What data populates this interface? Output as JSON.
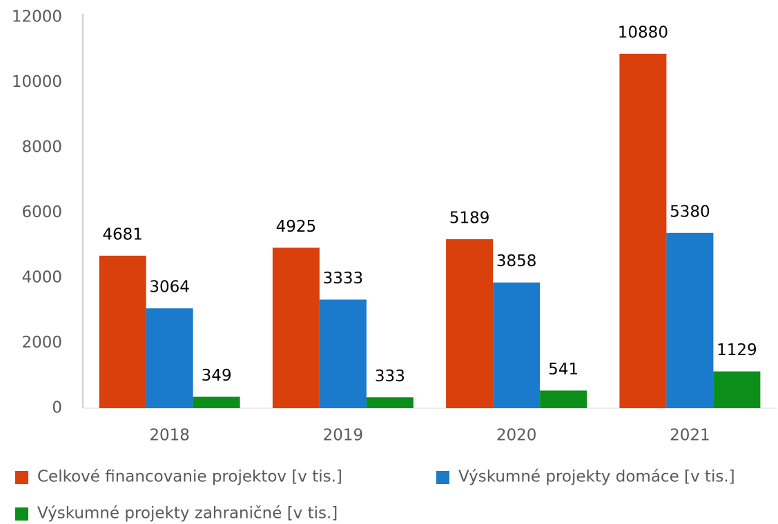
{
  "chart_data": {
    "type": "bar",
    "categories": [
      "2018",
      "2019",
      "2020",
      "2021"
    ],
    "series": [
      {
        "name": "Celkové financovanie projektov [v tis.]",
        "color": "#d9400c",
        "values": [
          4681,
          4925,
          5189,
          10880
        ]
      },
      {
        "name": "Výskumné projekty domáce [v tis.]",
        "color": "#1a7acb",
        "values": [
          3064,
          3333,
          3858,
          5380
        ]
      },
      {
        "name": "Výskumné projekty zahraničné [v tis.]",
        "color": "#0b8f1a",
        "values": [
          349,
          333,
          541,
          1129
        ]
      }
    ],
    "ylim": [
      0,
      12000
    ],
    "yticks": [
      0,
      2000,
      4000,
      6000,
      8000,
      10000,
      12000
    ],
    "grid": false,
    "legend": "bottom",
    "data_labels": true
  }
}
